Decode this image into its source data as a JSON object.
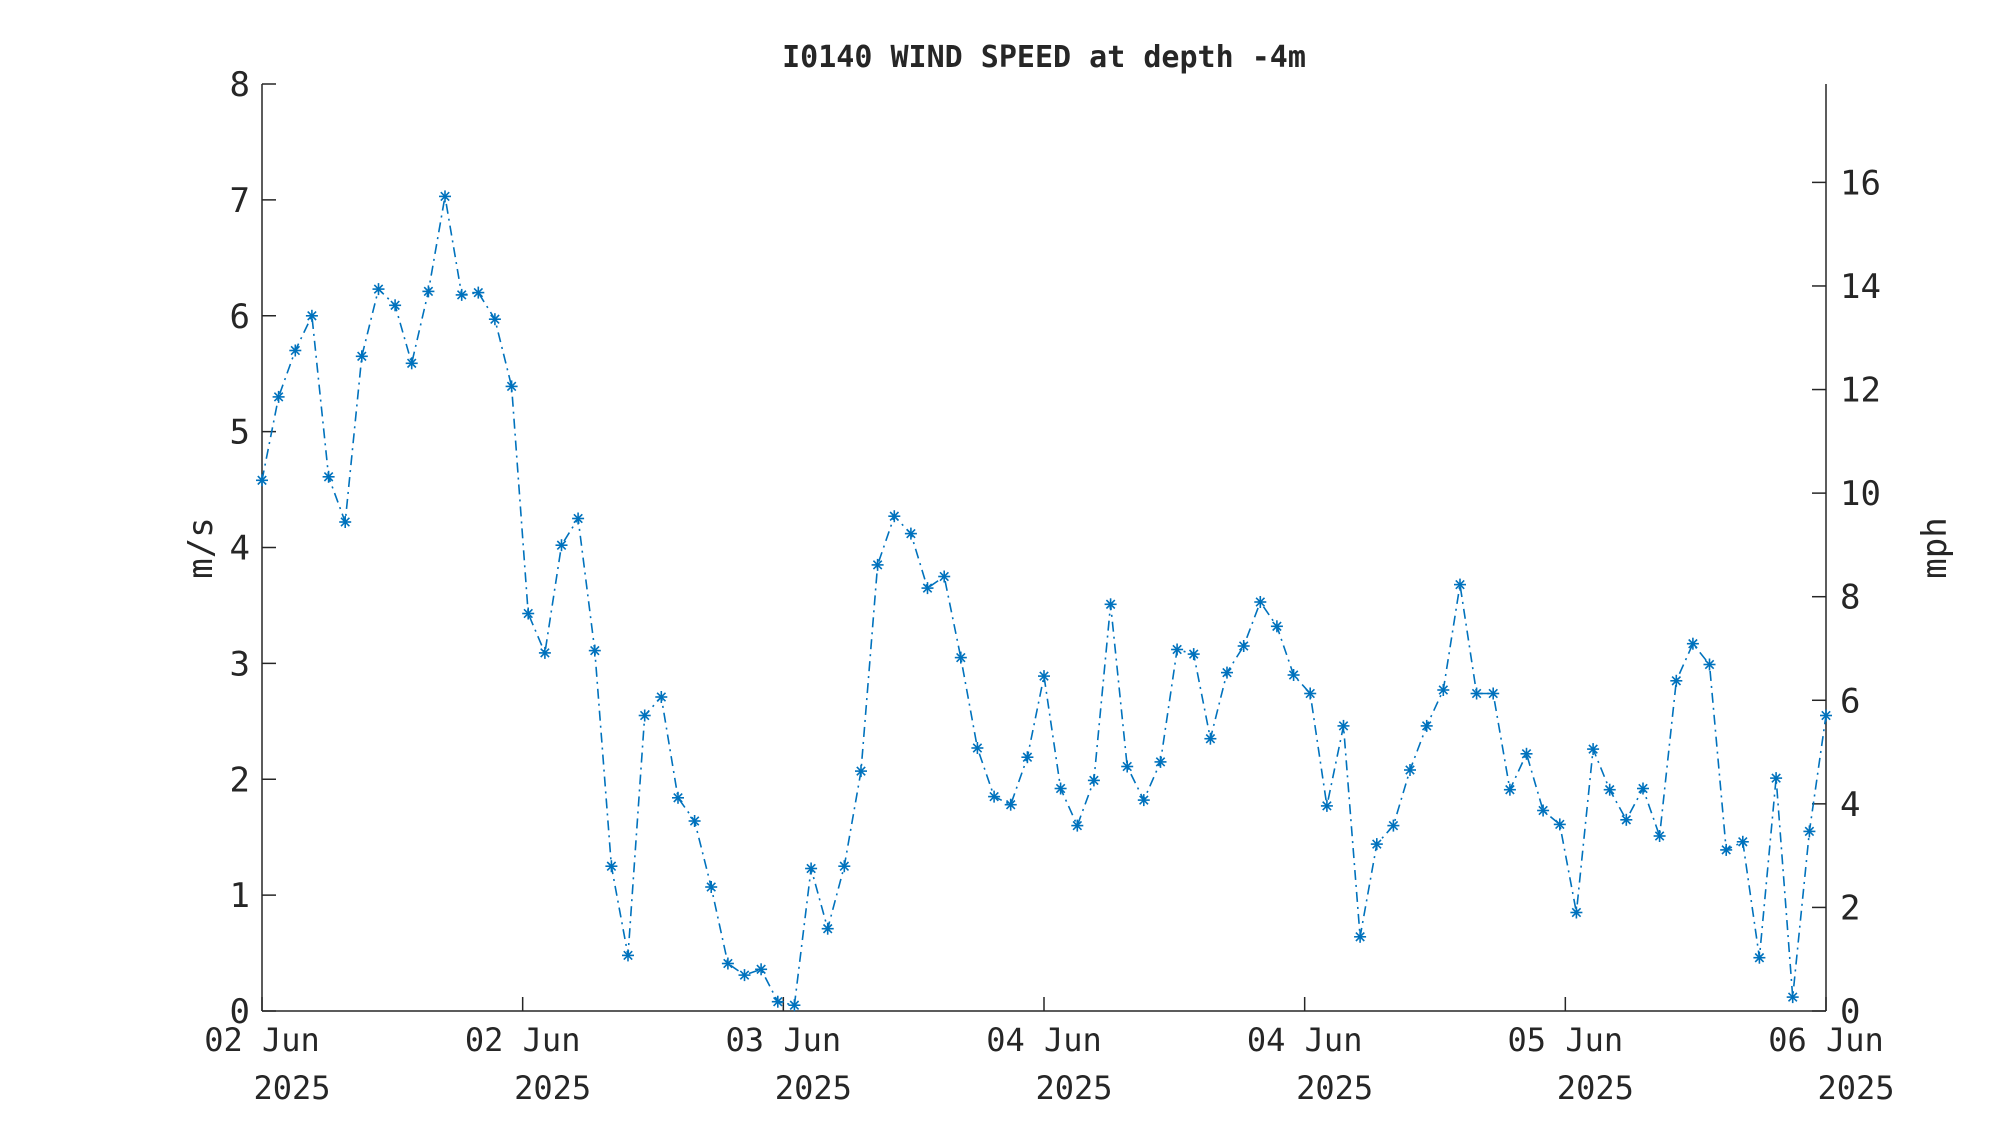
{
  "chart_data": {
    "type": "line",
    "title": "I0140 WIND SPEED at depth -4m",
    "ylabel_left": "m/s",
    "ylabel_right": "mph",
    "ylim_left": [
      0,
      8
    ],
    "ylim_right": [
      0,
      17.9
    ],
    "yticks_left": [
      0,
      1,
      2,
      3,
      4,
      5,
      6,
      7,
      8
    ],
    "yticks_right": [
      0,
      2,
      4,
      6,
      8,
      10,
      12,
      14,
      16
    ],
    "xlim_hours": [
      0,
      96
    ],
    "xticks": [
      {
        "line1": "02 Jun",
        "line2": "2025"
      },
      {
        "line1": "02 Jun",
        "line2": "2025"
      },
      {
        "line1": "03 Jun",
        "line2": "2025"
      },
      {
        "line1": "04 Jun",
        "line2": "2025"
      },
      {
        "line1": "04 Jun",
        "line2": "2025"
      },
      {
        "line1": "05 Jun",
        "line2": "2025"
      },
      {
        "line1": "06 Jun",
        "line2": "2025"
      }
    ],
    "series_color": "#0072BD",
    "line_style": "dash-dot",
    "marker": "asterisk",
    "grid": false,
    "values": [
      4.58,
      5.3,
      5.7,
      6.0,
      4.61,
      4.22,
      5.65,
      6.23,
      6.09,
      5.59,
      6.21,
      7.03,
      6.18,
      6.2,
      5.97,
      5.39,
      3.43,
      3.09,
      4.02,
      4.25,
      3.11,
      1.25,
      0.48,
      2.55,
      2.71,
      1.84,
      1.64,
      1.07,
      0.41,
      0.31,
      0.36,
      0.08,
      0.05,
      1.23,
      0.71,
      1.25,
      2.07,
      3.85,
      4.27,
      4.12,
      3.65,
      3.75,
      3.05,
      2.27,
      1.85,
      1.78,
      2.19,
      2.89,
      1.92,
      1.6,
      1.99,
      3.51,
      2.11,
      1.82,
      2.15,
      3.12,
      3.08,
      2.35,
      2.92,
      3.15,
      3.53,
      3.32,
      2.9,
      2.74,
      1.77,
      2.46,
      0.64,
      1.44,
      1.6,
      2.08,
      2.46,
      2.77,
      3.68,
      2.74,
      2.74,
      1.91,
      2.22,
      1.73,
      1.61,
      0.85,
      2.26,
      1.91,
      1.65,
      1.92,
      1.51,
      2.85,
      3.17,
      2.99,
      1.39,
      1.46,
      0.46,
      2.01,
      0.12,
      1.55,
      2.55
    ]
  }
}
